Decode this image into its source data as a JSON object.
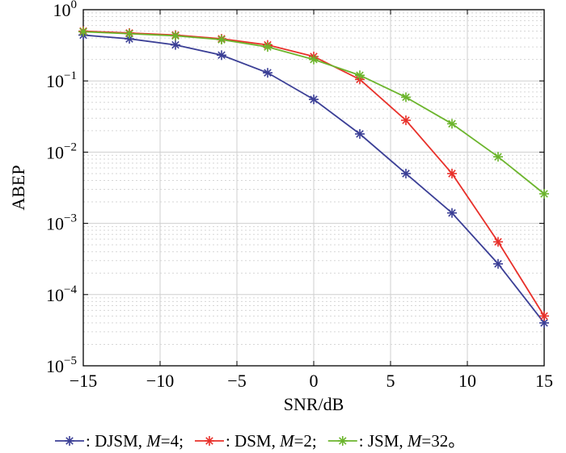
{
  "chart_data": {
    "type": "line",
    "xlabel": "SNR/dB",
    "ylabel": "ABEP",
    "xlim": [
      -15,
      15
    ],
    "ylim": [
      1e-05,
      1
    ],
    "yscale": "log",
    "grid": true,
    "x_ticks": [
      -15,
      -10,
      -5,
      0,
      5,
      10,
      15
    ],
    "x_tick_labels": [
      "−15",
      "−10",
      "−5",
      "0",
      "5",
      "10",
      "15"
    ],
    "y_ticks": [
      1,
      0.1,
      0.01,
      0.001,
      0.0001,
      1e-05
    ],
    "y_tick_labels": [
      {
        "base": "10",
        "exp": "0"
      },
      {
        "base": "10",
        "exp": "−1"
      },
      {
        "base": "10",
        "exp": "−2"
      },
      {
        "base": "10",
        "exp": "−3"
      },
      {
        "base": "10",
        "exp": "−4"
      },
      {
        "base": "10",
        "exp": "−5"
      }
    ],
    "x": [
      -15,
      -12,
      -9,
      -6,
      -3,
      0,
      3,
      6,
      9,
      12,
      15
    ],
    "series": [
      {
        "name": "DJSM, M=4",
        "legend_parts": {
          "prefix": ": DJSM, ",
          "var": "M",
          "suffix": "=4;"
        },
        "color": "#3b3f96",
        "marker": "asterisk",
        "values": [
          0.44,
          0.39,
          0.32,
          0.23,
          0.13,
          0.055,
          0.018,
          0.005,
          0.0014,
          0.00027,
          4e-05
        ]
      },
      {
        "name": "DSM, M=2",
        "legend_parts": {
          "prefix": ": DSM, ",
          "var": "M",
          "suffix": "=2;"
        },
        "color": "#e8302a",
        "marker": "asterisk",
        "values": [
          0.5,
          0.47,
          0.44,
          0.39,
          0.32,
          0.22,
          0.105,
          0.028,
          0.005,
          0.00055,
          5e-05
        ]
      },
      {
        "name": "JSM, M=32",
        "legend_parts": {
          "prefix": ": JSM, ",
          "var": "M",
          "suffix": "=32。"
        },
        "color": "#6cb52d",
        "marker": "asterisk",
        "values": [
          0.49,
          0.46,
          0.43,
          0.38,
          0.3,
          0.2,
          0.12,
          0.059,
          0.025,
          0.0086,
          0.0026
        ]
      }
    ]
  }
}
